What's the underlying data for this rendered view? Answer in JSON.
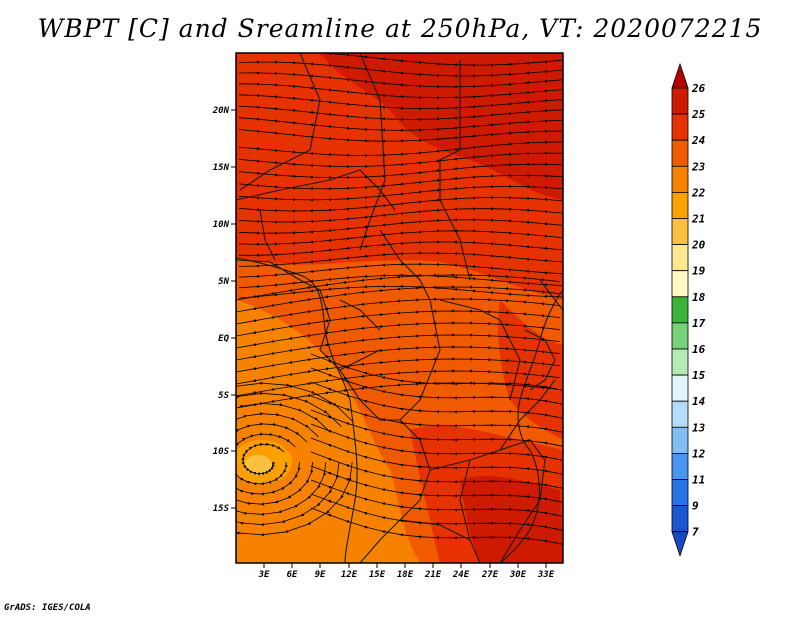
{
  "title": "WBPT [C] and Sreamline at 250hPa, VT: 2020072215",
  "footer": "GrADS: IGES/COLA",
  "map": {
    "lat_labels": [
      "20N",
      "15N",
      "10N",
      "5N",
      "EQ",
      "5S",
      "10S",
      "15S"
    ],
    "lon_labels": [
      "3E",
      "6E",
      "9E",
      "12E",
      "15E",
      "18E",
      "21E",
      "24E",
      "27E",
      "30E",
      "33E"
    ]
  },
  "colorbar": {
    "levels": [
      "26",
      "25",
      "24",
      "23",
      "22",
      "21",
      "20",
      "19",
      "18",
      "17",
      "16",
      "15",
      "14",
      "13",
      "12",
      "11",
      "9",
      "7"
    ],
    "colors": [
      "#b40000",
      "#cd1a00",
      "#e63200",
      "#f05a00",
      "#f78200",
      "#fca000",
      "#fcc040",
      "#fde890",
      "#fef8c0",
      "#3cb43c",
      "#78d278",
      "#b4e8b4",
      "#e1f5fa",
      "#b4dcfa",
      "#82bef5",
      "#4b96f0",
      "#2873e6",
      "#1a55d2",
      "#1a46c8"
    ]
  }
}
